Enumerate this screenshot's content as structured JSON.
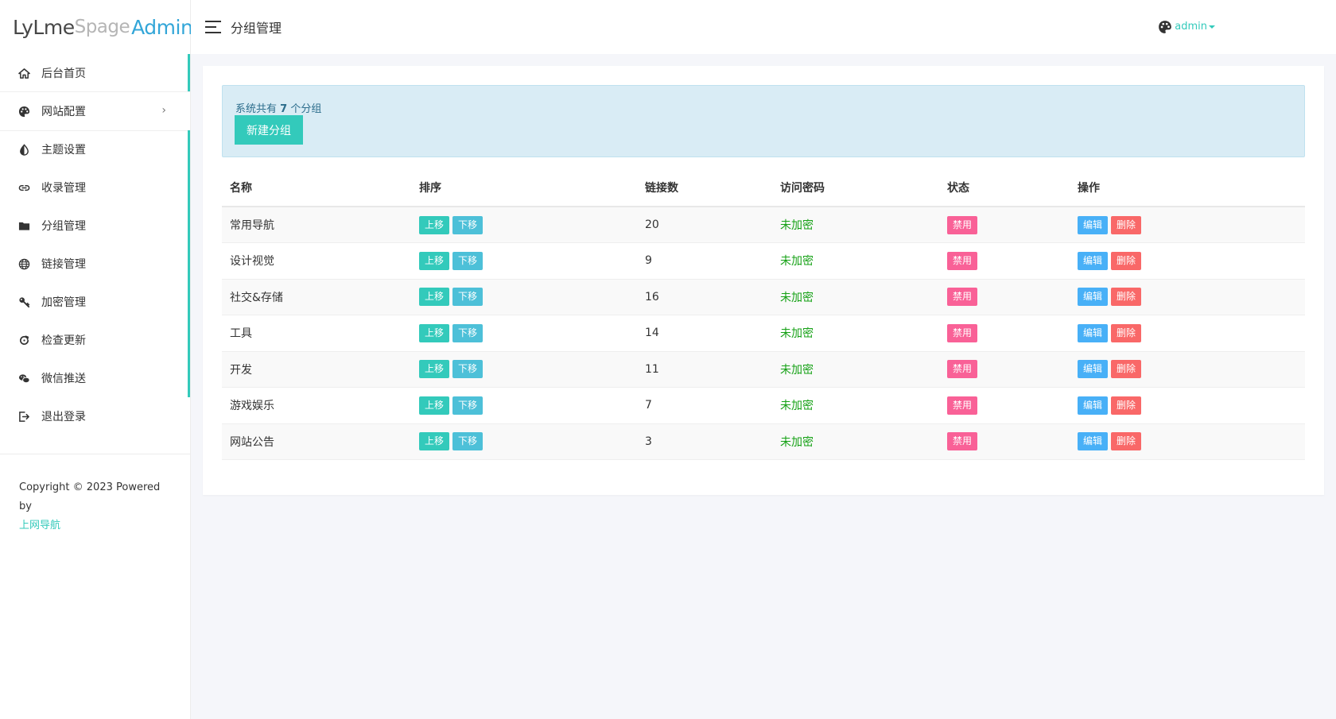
{
  "logo": {
    "part1": "LyLme",
    "part2": "Spage",
    "part3": "Admin"
  },
  "header": {
    "title": "分组管理",
    "user": "admin"
  },
  "sidebar": {
    "items": [
      {
        "label": "后台首页",
        "icon": "home-icon"
      },
      {
        "label": "网站配置",
        "icon": "palette-icon"
      },
      {
        "label": "主题设置",
        "icon": "contrast-icon"
      },
      {
        "label": "收录管理",
        "icon": "link-icon"
      },
      {
        "label": "分组管理",
        "icon": "folder-icon"
      },
      {
        "label": "链接管理",
        "icon": "globe-icon"
      },
      {
        "label": "加密管理",
        "icon": "key-icon"
      },
      {
        "label": "检查更新",
        "icon": "refresh-icon"
      },
      {
        "label": "微信推送",
        "icon": "wechat-icon"
      },
      {
        "label": "退出登录",
        "icon": "logout-icon"
      }
    ],
    "footer": {
      "copyright": "Copyright © 2023 Powered by",
      "link": "上网导航"
    }
  },
  "alert": {
    "prefix": "系统共有 ",
    "count": "7",
    "suffix": " 个分组",
    "new_button": "新建分组"
  },
  "table": {
    "headers": [
      "名称",
      "排序",
      "链接数",
      "访问密码",
      "状态",
      "操作"
    ],
    "rows": [
      {
        "name": "常用导航",
        "links": "20",
        "password": "未加密"
      },
      {
        "name": "设计视觉",
        "links": "9",
        "password": "未加密"
      },
      {
        "name": "社交&存储",
        "links": "16",
        "password": "未加密"
      },
      {
        "name": "工具",
        "links": "14",
        "password": "未加密"
      },
      {
        "name": "开发",
        "links": "11",
        "password": "未加密"
      },
      {
        "name": "游戏娱乐",
        "links": "7",
        "password": "未加密"
      },
      {
        "name": "网站公告",
        "links": "3",
        "password": "未加密"
      }
    ],
    "btn_up": "上移",
    "btn_down": "下移",
    "btn_ban": "禁用",
    "btn_edit": "编辑",
    "btn_del": "删除"
  },
  "colors": {
    "accent": "#33cabb",
    "info": "#48b0f7",
    "danger": "#f96868",
    "pink": "#f96197",
    "success": "#15a115"
  }
}
